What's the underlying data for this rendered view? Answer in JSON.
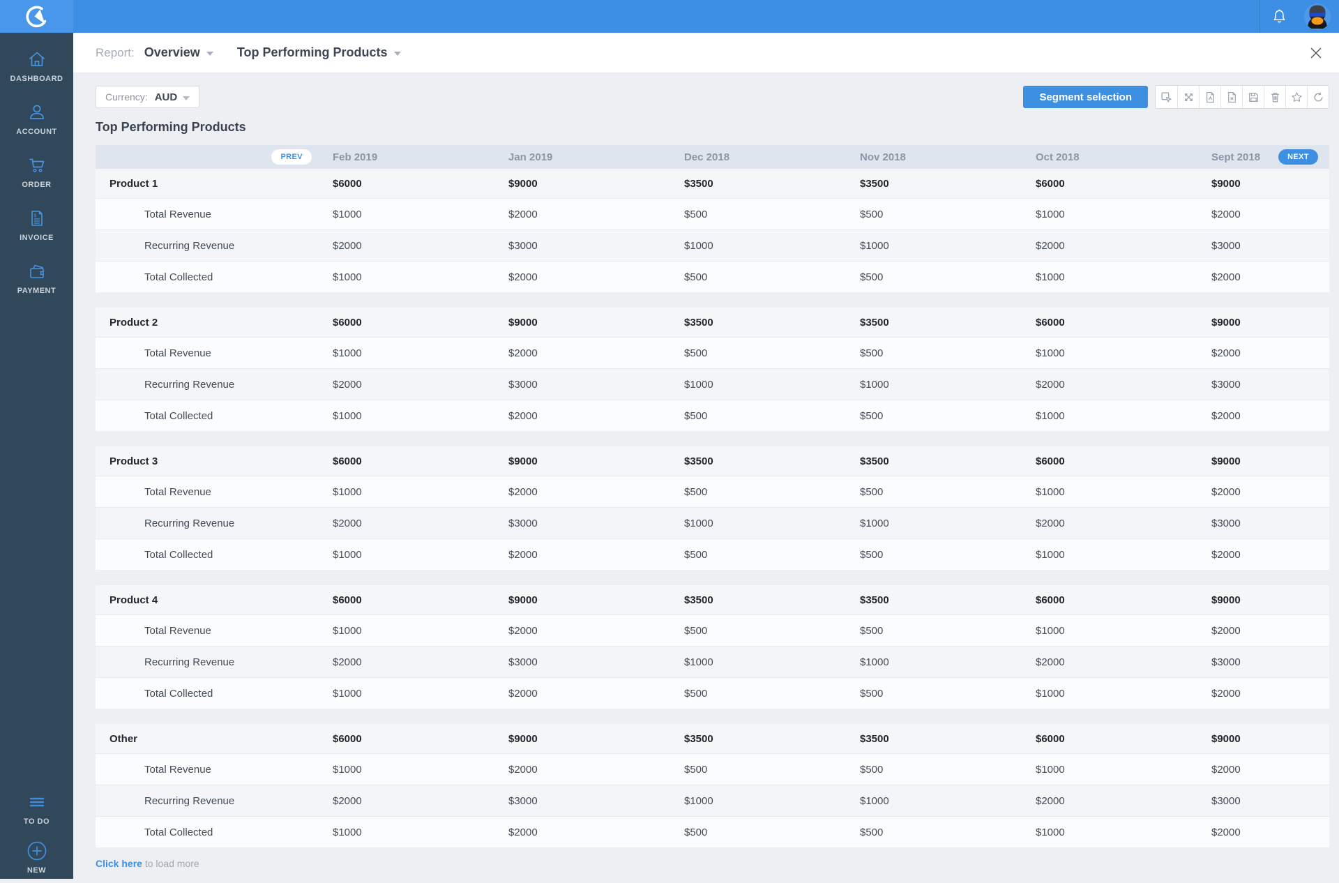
{
  "colors": {
    "topbar": "#3c8fe4",
    "logo_tile": "#4897ea",
    "sidebar": "#31475a",
    "accent_blue": "#3d8fe2",
    "page_bg": "#edeff3",
    "table_header_bg": "#dfe5ee",
    "sidebar_icon_blue": "#4794e0"
  },
  "topbar": {
    "bell_icon": "bell-icon",
    "avatar": "penguin-avatar"
  },
  "sidebar": {
    "items": [
      {
        "label": "DASHBOARD",
        "icon": "home-icon"
      },
      {
        "label": "ACCOUNT",
        "icon": "person-icon"
      },
      {
        "label": "ORDER",
        "icon": "cart-icon"
      },
      {
        "label": "INVOICE",
        "icon": "invoice-icon"
      },
      {
        "label": "PAYMENT",
        "icon": "wallet-icon"
      }
    ],
    "bottom_items": [
      {
        "label": "TO DO",
        "icon": "menu-lines-icon"
      },
      {
        "label": "NEW",
        "icon": "plus-circle-icon"
      }
    ]
  },
  "header": {
    "report_label": "Report:",
    "report_type": "Overview",
    "report_name": "Top Performing Products",
    "close_icon": "close-icon"
  },
  "controls": {
    "currency_label": "Currency:",
    "currency_value": "AUD",
    "segment_button": "Segment selection",
    "toolbar_icons": [
      "cursor-select-icon",
      "expand-icon",
      "pdf-file-icon",
      "excel-file-icon",
      "save-icon",
      "trash-icon",
      "star-icon",
      "refresh-icon"
    ]
  },
  "report": {
    "title": "Top Performing Products",
    "prev_label": "PREV",
    "next_label": "NEXT",
    "columns": [
      "Feb 2019",
      "Jan 2019",
      "Dec 2018",
      "Nov 2018",
      "Oct 2018",
      "Sept 2018"
    ],
    "metric_labels": [
      "Total Revenue",
      "Recurring Revenue",
      "Total Collected"
    ],
    "groups": [
      {
        "name": "Product 1",
        "totals": [
          "$6000",
          "$9000",
          "$3500",
          "$3500",
          "$6000",
          "$9000"
        ],
        "metrics": [
          [
            "$1000",
            "$2000",
            "$500",
            "$500",
            "$1000",
            "$2000"
          ],
          [
            "$2000",
            "$3000",
            "$1000",
            "$1000",
            "$2000",
            "$3000"
          ],
          [
            "$1000",
            "$2000",
            "$500",
            "$500",
            "$1000",
            "$2000"
          ]
        ]
      },
      {
        "name": "Product 2",
        "totals": [
          "$6000",
          "$9000",
          "$3500",
          "$3500",
          "$6000",
          "$9000"
        ],
        "metrics": [
          [
            "$1000",
            "$2000",
            "$500",
            "$500",
            "$1000",
            "$2000"
          ],
          [
            "$2000",
            "$3000",
            "$1000",
            "$1000",
            "$2000",
            "$3000"
          ],
          [
            "$1000",
            "$2000",
            "$500",
            "$500",
            "$1000",
            "$2000"
          ]
        ]
      },
      {
        "name": "Product 3",
        "totals": [
          "$6000",
          "$9000",
          "$3500",
          "$3500",
          "$6000",
          "$9000"
        ],
        "metrics": [
          [
            "$1000",
            "$2000",
            "$500",
            "$500",
            "$1000",
            "$2000"
          ],
          [
            "$2000",
            "$3000",
            "$1000",
            "$1000",
            "$2000",
            "$3000"
          ],
          [
            "$1000",
            "$2000",
            "$500",
            "$500",
            "$1000",
            "$2000"
          ]
        ]
      },
      {
        "name": "Product 4",
        "totals": [
          "$6000",
          "$9000",
          "$3500",
          "$3500",
          "$6000",
          "$9000"
        ],
        "metrics": [
          [
            "$1000",
            "$2000",
            "$500",
            "$500",
            "$1000",
            "$2000"
          ],
          [
            "$2000",
            "$3000",
            "$1000",
            "$1000",
            "$2000",
            "$3000"
          ],
          [
            "$1000",
            "$2000",
            "$500",
            "$500",
            "$1000",
            "$2000"
          ]
        ]
      },
      {
        "name": "Other",
        "totals": [
          "$6000",
          "$9000",
          "$3500",
          "$3500",
          "$6000",
          "$9000"
        ],
        "metrics": [
          [
            "$1000",
            "$2000",
            "$500",
            "$500",
            "$1000",
            "$2000"
          ],
          [
            "$2000",
            "$3000",
            "$1000",
            "$1000",
            "$2000",
            "$3000"
          ],
          [
            "$1000",
            "$2000",
            "$500",
            "$500",
            "$1000",
            "$2000"
          ]
        ]
      }
    ],
    "load_more_link": "Click here",
    "load_more_rest": " to load more"
  }
}
